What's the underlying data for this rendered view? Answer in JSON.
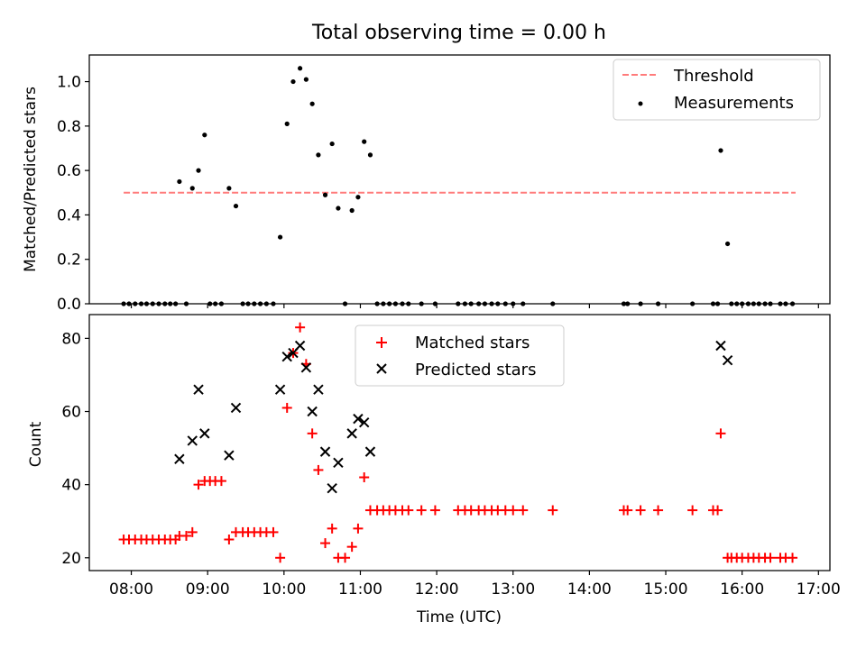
{
  "figure": {
    "title": "Total observing time = 0.00 h"
  },
  "chart_data": [
    {
      "type": "scatter",
      "ylabel": "Matched/Predicted stars",
      "xlim": [
        7.45,
        17.15
      ],
      "ylim": [
        0,
        1.12
      ],
      "yticks": [
        0.0,
        0.2,
        0.4,
        0.6,
        0.8,
        1.0
      ],
      "ytick_labels": [
        "0.0",
        "0.2",
        "0.4",
        "0.6",
        "0.8",
        "1.0"
      ],
      "legend_position": "top-right",
      "threshold": {
        "name": "Threshold",
        "value": 0.5,
        "x_range": [
          7.9,
          16.7
        ],
        "color": "#ff7b7b"
      },
      "series": [
        {
          "name": "Measurements",
          "color": "#000000",
          "marker": "dot",
          "x": [
            7.9,
            7.97,
            8.05,
            8.13,
            8.2,
            8.28,
            8.36,
            8.44,
            8.51,
            8.58,
            8.63,
            8.72,
            8.8,
            8.88,
            8.96,
            9.03,
            9.1,
            9.18,
            9.28,
            9.37,
            9.46,
            9.53,
            9.61,
            9.69,
            9.77,
            9.86,
            9.95,
            10.04,
            10.12,
            10.21,
            10.29,
            10.37,
            10.45,
            10.54,
            10.63,
            10.71,
            10.8,
            10.89,
            10.97,
            11.05,
            11.13,
            11.22,
            11.3,
            11.38,
            11.46,
            11.55,
            11.63,
            11.8,
            11.98,
            12.28,
            12.37,
            12.45,
            12.55,
            12.63,
            12.72,
            12.8,
            12.9,
            13.0,
            13.13,
            13.52,
            14.45,
            14.5,
            14.67,
            14.9,
            15.35,
            15.62,
            15.68,
            15.72,
            15.81,
            15.86,
            15.93,
            16.0,
            16.08,
            16.15,
            16.22,
            16.3,
            16.37,
            16.5,
            16.57,
            16.66
          ],
          "y": [
            0,
            0,
            0,
            0,
            0,
            0,
            0,
            0,
            0,
            0,
            0.55,
            0,
            0.52,
            0.6,
            0.76,
            0,
            0,
            0,
            0.52,
            0.44,
            0,
            0,
            0,
            0,
            0,
            0,
            0.3,
            0.81,
            1.0,
            1.06,
            1.01,
            0.9,
            0.67,
            0.49,
            0.72,
            0.43,
            0,
            0.42,
            0.48,
            0.73,
            0.67,
            0,
            0,
            0,
            0,
            0,
            0,
            0,
            0,
            0,
            0,
            0,
            0,
            0,
            0,
            0,
            0,
            0,
            0,
            0,
            0,
            0,
            0,
            0,
            0,
            0,
            0,
            0.69,
            0.27,
            0,
            0,
            0,
            0,
            0,
            0,
            0,
            0,
            0,
            0,
            0
          ]
        }
      ]
    },
    {
      "type": "scatter",
      "xlabel": "Time (UTC)",
      "ylabel": "Count",
      "xlim": [
        7.45,
        17.15
      ],
      "ylim": [
        16.5,
        86.5
      ],
      "yticks": [
        20,
        40,
        60,
        80
      ],
      "ytick_labels": [
        "20",
        "40",
        "60",
        "80"
      ],
      "xticks": [
        8,
        9,
        10,
        11,
        12,
        13,
        14,
        15,
        16,
        17
      ],
      "xtick_labels": [
        "08:00",
        "09:00",
        "10:00",
        "11:00",
        "12:00",
        "13:00",
        "14:00",
        "15:00",
        "16:00",
        "17:00"
      ],
      "legend_position": "top-center",
      "series": [
        {
          "name": "Matched stars",
          "color": "#ff0000",
          "marker": "plus",
          "x": [
            7.9,
            7.97,
            8.05,
            8.13,
            8.2,
            8.28,
            8.36,
            8.44,
            8.51,
            8.58,
            8.63,
            8.72,
            8.8,
            8.88,
            8.96,
            9.03,
            9.1,
            9.18,
            9.28,
            9.37,
            9.46,
            9.53,
            9.61,
            9.69,
            9.77,
            9.86,
            9.95,
            10.04,
            10.12,
            10.21,
            10.29,
            10.37,
            10.45,
            10.54,
            10.63,
            10.71,
            10.8,
            10.89,
            10.97,
            11.05,
            11.13,
            11.22,
            11.3,
            11.38,
            11.46,
            11.55,
            11.63,
            11.8,
            11.98,
            12.28,
            12.37,
            12.45,
            12.55,
            12.63,
            12.72,
            12.8,
            12.9,
            13.0,
            13.13,
            13.52,
            14.45,
            14.5,
            14.67,
            14.9,
            15.35,
            15.62,
            15.68,
            15.72,
            15.81,
            15.86,
            15.93,
            16.0,
            16.08,
            16.15,
            16.22,
            16.3,
            16.37,
            16.5,
            16.57,
            16.66
          ],
          "y": [
            25,
            25,
            25,
            25,
            25,
            25,
            25,
            25,
            25,
            25,
            26,
            26,
            27,
            40,
            41,
            41,
            41,
            41,
            25,
            27,
            27,
            27,
            27,
            27,
            27,
            27,
            20,
            61,
            76,
            83,
            73,
            54,
            44,
            24,
            28,
            20,
            20,
            23,
            28,
            42,
            33,
            33,
            33,
            33,
            33,
            33,
            33,
            33,
            33,
            33,
            33,
            33,
            33,
            33,
            33,
            33,
            33,
            33,
            33,
            33,
            33,
            33,
            33,
            33,
            33,
            33,
            33,
            54,
            20,
            20,
            20,
            20,
            20,
            20,
            20,
            20,
            20,
            20,
            20,
            20
          ]
        },
        {
          "name": "Predicted stars",
          "color": "#000000",
          "marker": "x",
          "x": [
            8.63,
            8.8,
            8.88,
            8.96,
            9.28,
            9.37,
            9.95,
            10.04,
            10.12,
            10.21,
            10.29,
            10.37,
            10.45,
            10.54,
            10.63,
            10.71,
            10.89,
            10.97,
            11.05,
            11.13,
            15.72,
            15.81
          ],
          "y": [
            47,
            52,
            66,
            54,
            48,
            61,
            66,
            75,
            76,
            78,
            72,
            60,
            66,
            49,
            39,
            46,
            54,
            58,
            57,
            49,
            78,
            74
          ]
        }
      ]
    }
  ]
}
